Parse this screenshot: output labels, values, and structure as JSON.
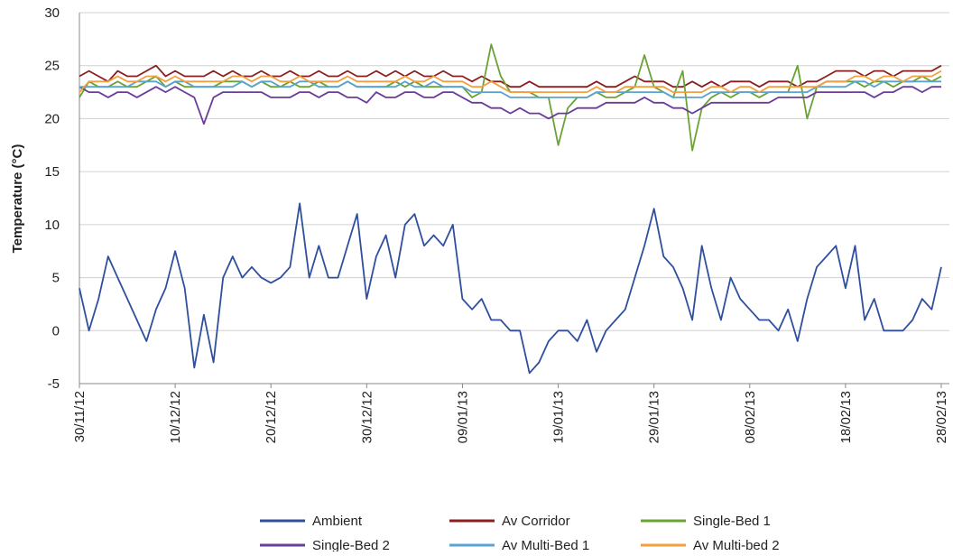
{
  "chart_data": {
    "type": "line",
    "y_label": "Temperature (°C)",
    "x": [
      "30/11/12",
      "01/12/12",
      "02/12/12",
      "03/12/12",
      "04/12/12",
      "05/12/12",
      "06/12/12",
      "07/12/12",
      "08/12/12",
      "09/12/12",
      "10/12/12",
      "11/12/12",
      "12/12/12",
      "13/12/12",
      "14/12/12",
      "15/12/12",
      "16/12/12",
      "17/12/12",
      "18/12/12",
      "19/12/12",
      "20/12/12",
      "21/12/12",
      "22/12/12",
      "23/12/12",
      "24/12/12",
      "25/12/12",
      "26/12/12",
      "27/12/12",
      "28/12/12",
      "29/12/12",
      "30/12/12",
      "31/12/12",
      "01/01/13",
      "02/01/13",
      "03/01/13",
      "04/01/13",
      "05/01/13",
      "06/01/13",
      "07/01/13",
      "08/01/13",
      "09/01/13",
      "10/01/13",
      "11/01/13",
      "12/01/13",
      "13/01/13",
      "14/01/13",
      "15/01/13",
      "16/01/13",
      "17/01/13",
      "18/01/13",
      "19/01/13",
      "20/01/13",
      "21/01/13",
      "22/01/13",
      "23/01/13",
      "24/01/13",
      "25/01/13",
      "26/01/13",
      "27/01/13",
      "28/01/13",
      "29/01/13",
      "30/01/13",
      "31/01/13",
      "01/02/13",
      "02/02/13",
      "03/02/13",
      "04/02/13",
      "05/02/13",
      "06/02/13",
      "07/02/13",
      "08/02/13",
      "09/02/13",
      "10/02/13",
      "11/02/13",
      "12/02/13",
      "13/02/13",
      "14/02/13",
      "15/02/13",
      "16/02/13",
      "17/02/13",
      "18/02/13",
      "19/02/13",
      "20/02/13",
      "21/02/13",
      "22/02/13",
      "23/02/13",
      "24/02/13",
      "25/02/13",
      "26/02/13",
      "27/02/13",
      "28/02/13"
    ],
    "xticks": [
      "30/11/12",
      "10/12/12",
      "20/12/12",
      "30/12/12",
      "09/01/13",
      "19/01/13",
      "29/01/13",
      "08/02/13",
      "18/02/13",
      "28/02/13"
    ],
    "ylim": [
      -5,
      30
    ],
    "yticks": [
      -5,
      0,
      5,
      10,
      15,
      20,
      25,
      30
    ],
    "grid": true,
    "legend": "bottom",
    "series": [
      {
        "name": "Ambient",
        "color": "#2f4f9e",
        "values": [
          4,
          0,
          3,
          7,
          5,
          3,
          1,
          -1,
          2,
          4,
          7.5,
          4,
          -3.5,
          1.5,
          -3,
          5,
          7,
          5,
          6,
          5,
          4.5,
          5,
          6,
          12,
          5,
          8,
          5,
          5,
          8,
          11,
          3,
          7,
          9,
          5,
          10,
          11,
          8,
          9,
          8,
          10,
          3,
          2,
          3,
          1,
          1,
          0,
          0,
          -4,
          -3,
          -1,
          0,
          0,
          -1,
          1,
          -2,
          0,
          1,
          2,
          5,
          8,
          11.5,
          7,
          6,
          4,
          1,
          8,
          4,
          1,
          5,
          3,
          2,
          1,
          1,
          0,
          2,
          -1,
          3,
          6,
          7,
          8,
          4,
          8,
          1,
          3,
          0,
          0,
          0,
          1,
          3,
          2,
          6
        ]
      },
      {
        "name": "Av Corridor",
        "color": "#8b1f1f",
        "values": [
          24,
          24.5,
          24,
          23.5,
          24.5,
          24,
          24,
          24.5,
          25,
          24,
          24.5,
          24,
          24,
          24,
          24.5,
          24,
          24.5,
          24,
          24,
          24.5,
          24,
          24,
          24.5,
          24,
          24,
          24.5,
          24,
          24,
          24.5,
          24,
          24,
          24.5,
          24,
          24.5,
          24,
          24.5,
          24,
          24,
          24.5,
          24,
          24,
          23.5,
          24,
          23.5,
          23.5,
          23,
          23,
          23.5,
          23,
          23,
          23,
          23,
          23,
          23,
          23.5,
          23,
          23,
          23.5,
          24,
          23.5,
          23.5,
          23.5,
          23,
          23,
          23.5,
          23,
          23.5,
          23,
          23.5,
          23.5,
          23.5,
          23,
          23.5,
          23.5,
          23.5,
          23,
          23.5,
          23.5,
          24,
          24.5,
          24.5,
          24.5,
          24,
          24.5,
          24.5,
          24,
          24.5,
          24.5,
          24.5,
          24.5,
          25
        ]
      },
      {
        "name": "Single-Bed 1",
        "color": "#6aa334",
        "values": [
          22,
          23.5,
          23,
          23,
          23.5,
          23,
          23,
          23.5,
          24,
          23,
          23.5,
          23,
          23,
          23,
          23,
          23.5,
          23.5,
          23.5,
          23,
          23.5,
          23,
          23,
          23.5,
          23,
          23,
          23.5,
          23,
          23,
          23.5,
          23,
          23,
          23,
          23,
          23.5,
          23,
          23.5,
          23,
          23,
          23,
          23,
          23,
          22,
          22.5,
          27,
          24,
          22.5,
          22.5,
          22.5,
          22,
          22,
          17.5,
          21,
          22,
          22,
          22.5,
          22,
          22,
          22.5,
          23,
          26,
          23,
          22.5,
          22,
          24.5,
          17,
          21,
          22,
          22.5,
          22,
          22.5,
          22.5,
          22,
          22.5,
          22.5,
          22.5,
          25,
          20,
          23,
          23.5,
          23.5,
          23.5,
          23.5,
          23,
          23.5,
          23.5,
          23,
          23.5,
          23.5,
          24,
          23.5,
          24
        ]
      },
      {
        "name": "Single-Bed 2",
        "color": "#6a3d9a",
        "values": [
          23,
          22.5,
          22.5,
          22,
          22.5,
          22.5,
          22,
          22.5,
          23,
          22.5,
          23,
          22.5,
          22,
          19.5,
          22,
          22.5,
          22.5,
          22.5,
          22.5,
          22.5,
          22,
          22,
          22,
          22.5,
          22.5,
          22,
          22.5,
          22.5,
          22,
          22,
          21.5,
          22.5,
          22,
          22,
          22.5,
          22.5,
          22,
          22,
          22.5,
          22.5,
          22,
          21.5,
          21.5,
          21,
          21,
          20.5,
          21,
          20.5,
          20.5,
          20,
          20.5,
          20.5,
          21,
          21,
          21,
          21.5,
          21.5,
          21.5,
          21.5,
          22,
          21.5,
          21.5,
          21,
          21,
          20.5,
          21,
          21.5,
          21.5,
          21.5,
          21.5,
          21.5,
          21.5,
          21.5,
          22,
          22,
          22,
          22,
          22.5,
          22.5,
          22.5,
          22.5,
          22.5,
          22.5,
          22,
          22.5,
          22.5,
          23,
          23,
          22.5,
          23,
          23
        ]
      },
      {
        "name": "Av Multi-Bed 1",
        "color": "#5ba3d0",
        "values": [
          23,
          23,
          23,
          23,
          23,
          23,
          23.5,
          23.5,
          23.5,
          23,
          23.5,
          23.5,
          23,
          23,
          23,
          23,
          23,
          23.5,
          23,
          23.5,
          23.5,
          23,
          23,
          23.5,
          23.5,
          23,
          23,
          23,
          23.5,
          23,
          23,
          23,
          23,
          23,
          23.5,
          23,
          23,
          23.5,
          23,
          23,
          23,
          22.5,
          22.5,
          22.5,
          22.5,
          22,
          22,
          22,
          22,
          22,
          22,
          22,
          22,
          22,
          22.5,
          22.5,
          22.5,
          22.5,
          22.5,
          22.5,
          22.5,
          22.5,
          22,
          22,
          22,
          22,
          22.5,
          22.5,
          22.5,
          22.5,
          22.5,
          22.5,
          22.5,
          22.5,
          22.5,
          22.5,
          22.5,
          23,
          23,
          23,
          23,
          23.5,
          23.5,
          23,
          23.5,
          23.5,
          23.5,
          23.5,
          23.5,
          23.5,
          23.5
        ]
      },
      {
        "name": "Av Multi-bed 2",
        "color": "#f0a040",
        "values": [
          22.5,
          23.5,
          23.5,
          23.5,
          24,
          23.5,
          23.5,
          24,
          24,
          23.5,
          24,
          23.5,
          23.5,
          23.5,
          23.5,
          23.5,
          24,
          24,
          23.5,
          24,
          24,
          23.5,
          23.5,
          24,
          23.5,
          23.5,
          23.5,
          23.5,
          24,
          23.5,
          23.5,
          23.5,
          23.5,
          23.5,
          24,
          23.5,
          23.5,
          24,
          23.5,
          23.5,
          23.5,
          23,
          23,
          23.5,
          23,
          22.5,
          22.5,
          22.5,
          22.5,
          22.5,
          22.5,
          22.5,
          22.5,
          22.5,
          23,
          22.5,
          22.5,
          23,
          23,
          23,
          23,
          23,
          22.5,
          22.5,
          22.5,
          22.5,
          23,
          23,
          22.5,
          23,
          23,
          22.5,
          23,
          23,
          23,
          23,
          23,
          23,
          23.5,
          23.5,
          23.5,
          24,
          24,
          23.5,
          24,
          24,
          23.5,
          24,
          24,
          24,
          24.5
        ]
      }
    ]
  }
}
